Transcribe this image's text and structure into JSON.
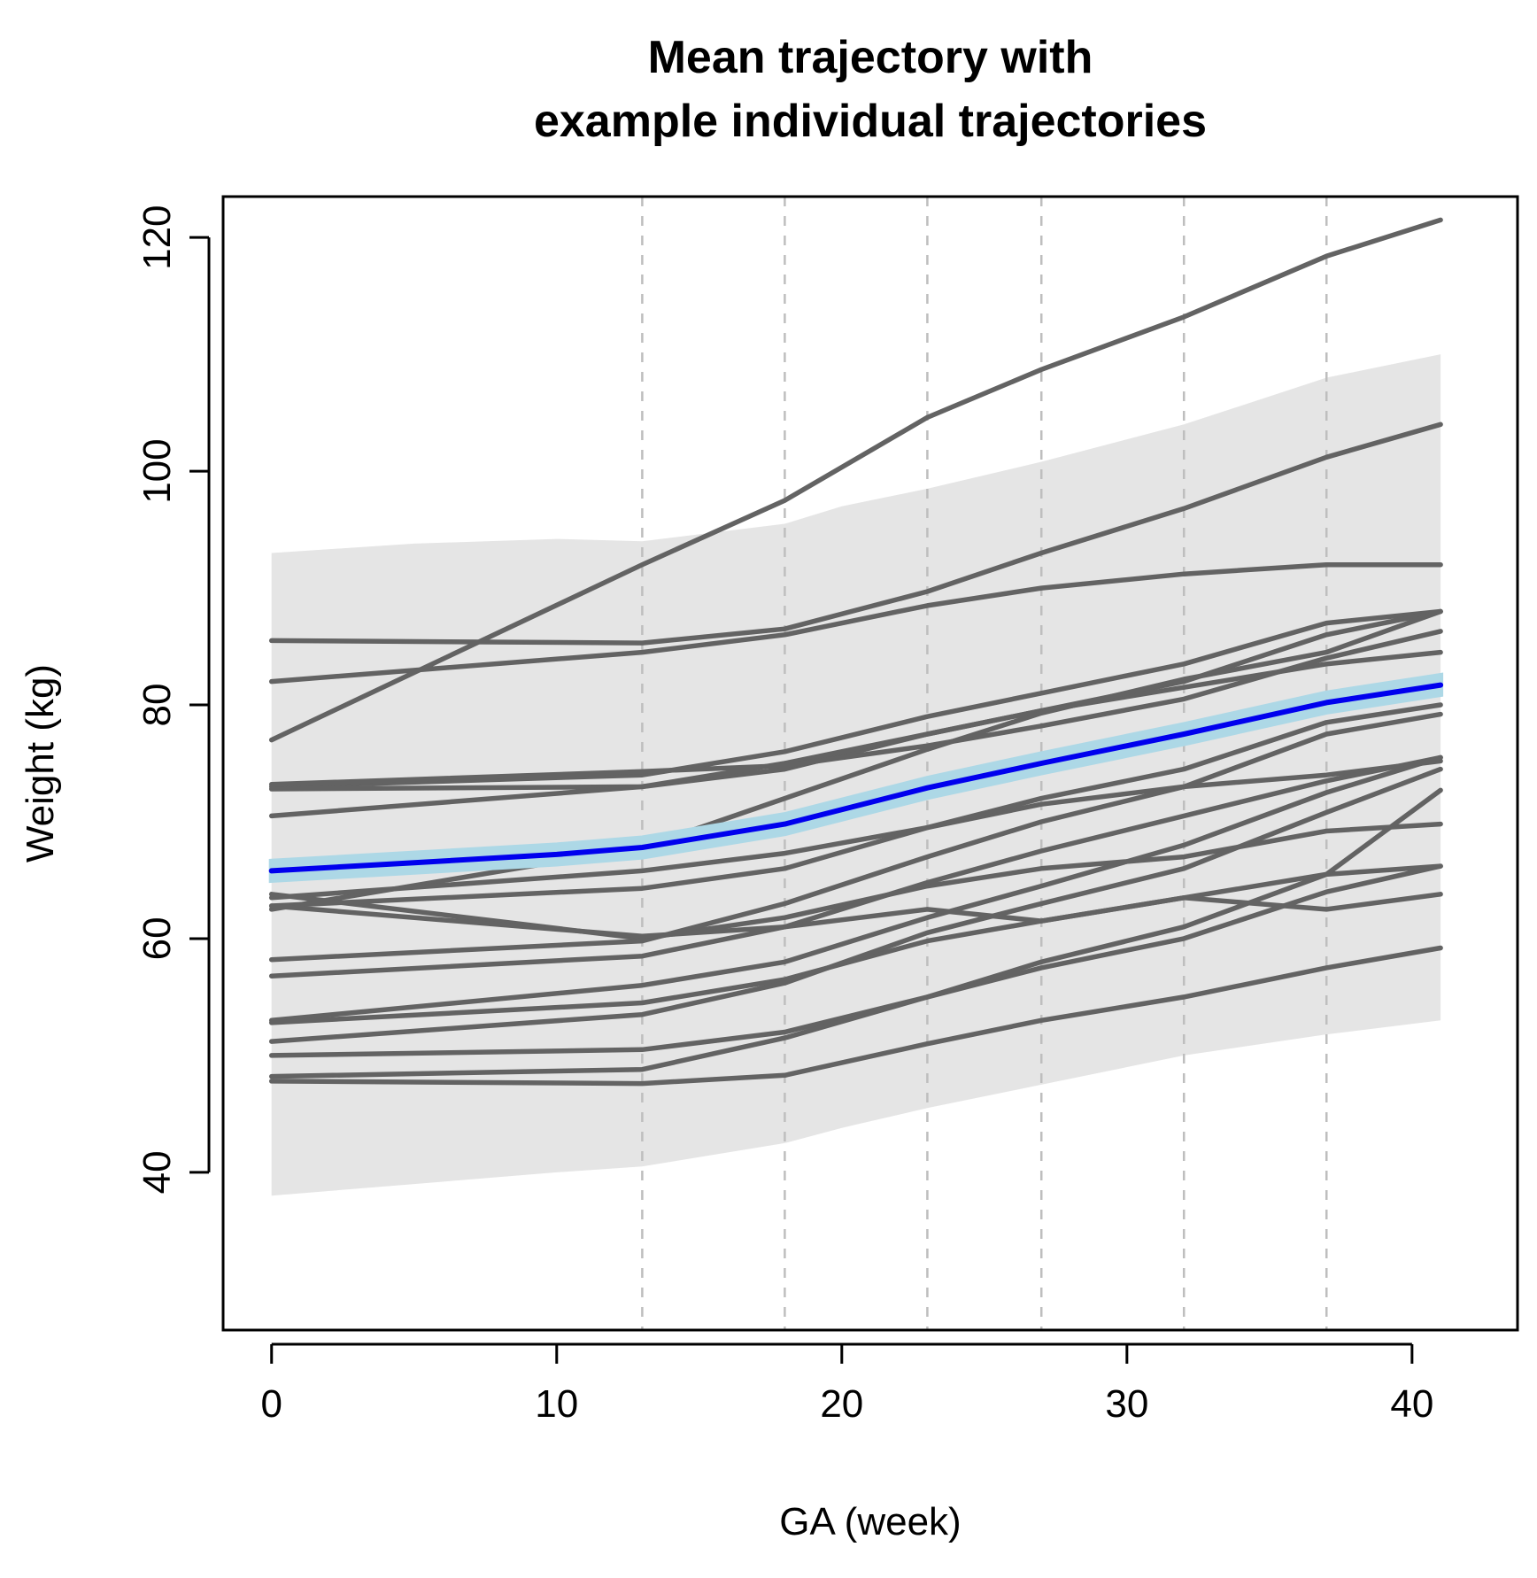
{
  "chart_data": {
    "type": "line",
    "title": "Mean trajectory with\nexample individual trajectories",
    "title_lines": [
      "Mean trajectory with",
      "example individual trajectories"
    ],
    "xlabel": "GA (week)",
    "ylabel": "Weight (kg)",
    "xlim": [
      -1.7,
      43.7
    ],
    "ylim": [
      26.5,
      123.5
    ],
    "xticks": [
      0,
      10,
      20,
      30,
      40
    ],
    "yticks": [
      40,
      60,
      80,
      100,
      120
    ],
    "grid": false,
    "vlines": [
      13,
      18,
      23,
      27,
      32,
      37
    ],
    "colors": {
      "individual": "#636363",
      "mean": "#0000ee",
      "ci": "#add8e6",
      "band": "#e5e5e5",
      "vline": "#bebebe"
    },
    "band": {
      "x": [
        0,
        5,
        10,
        13,
        18,
        20,
        23,
        27,
        32,
        37,
        41
      ],
      "lower": [
        38,
        39,
        40,
        40.5,
        42.5,
        43.8,
        45.5,
        47.5,
        50,
        51.8,
        53
      ],
      "upper": [
        93,
        93.8,
        94.2,
        94,
        95.5,
        97,
        98.5,
        100.8,
        104,
        108,
        110
      ]
    },
    "mean": {
      "x": [
        0,
        5,
        10,
        13,
        18,
        23,
        27,
        32,
        37,
        41
      ],
      "y": [
        65.8,
        66.5,
        67.2,
        67.8,
        69.8,
        72.9,
        75,
        77.5,
        80.2,
        81.7
      ],
      "ci_halfwidth": 0.8
    },
    "individual_x": [
      0,
      13,
      18,
      23,
      27,
      32,
      37,
      41
    ],
    "series": [
      {
        "values": [
          77,
          92,
          97.5,
          104.6,
          108.7,
          113.2,
          118.4,
          121.5
        ]
      },
      {
        "values": [
          82,
          84.5,
          86,
          88.5,
          90,
          91.2,
          92,
          92
        ]
      },
      {
        "values": [
          85.5,
          85.3,
          86.5,
          89.7,
          93,
          96.8,
          101.2,
          104
        ]
      },
      {
        "values": [
          73,
          74,
          76,
          79,
          81,
          83.5,
          87,
          88
        ]
      },
      {
        "values": [
          72.8,
          73,
          74.5,
          77.5,
          79.5,
          82,
          86,
          88
        ]
      },
      {
        "values": [
          70.5,
          73,
          75,
          77.5,
          79.5,
          81.5,
          83.5,
          84.5
        ]
      },
      {
        "values": [
          73.2,
          74.3,
          74.8,
          76.5,
          78.2,
          80.5,
          84,
          86.3
        ]
      },
      {
        "values": [
          62.5,
          67.8,
          72,
          76.2,
          79.3,
          82.2,
          84.5,
          88
        ]
      },
      {
        "values": [
          63.5,
          65.8,
          67.3,
          69.5,
          71.5,
          73,
          74,
          75.2
        ]
      },
      {
        "values": [
          63.8,
          60,
          61.8,
          64.5,
          66,
          67,
          69.2,
          69.8
        ]
      },
      {
        "values": [
          62.8,
          64.3,
          66,
          69.5,
          72,
          74.5,
          78.5,
          80
        ]
      },
      {
        "values": [
          58.2,
          59.8,
          63,
          67,
          70,
          73,
          77.5,
          79.2
        ]
      },
      {
        "values": [
          56.8,
          58.5,
          61,
          64.8,
          67.5,
          70.5,
          73.5,
          75.5
        ]
      },
      {
        "values": [
          53,
          56,
          58,
          61.8,
          64.5,
          68,
          72.5,
          75.5
        ]
      },
      {
        "values": [
          52.8,
          54.5,
          56.5,
          59.8,
          61.5,
          63.5,
          65.5,
          66.2
        ]
      },
      {
        "values": [
          51.2,
          53.5,
          56.2,
          60.5,
          63,
          66,
          70.8,
          74.5
        ]
      },
      {
        "values": [
          50,
          50.5,
          52,
          55,
          58,
          61,
          65.5,
          72.7
        ]
      },
      {
        "values": [
          48.2,
          48.8,
          51.5,
          55,
          57.5,
          60,
          64,
          66.2
        ]
      },
      {
        "values": [
          47.8,
          47.6,
          48.3,
          51,
          53,
          55,
          57.5,
          59.2
        ]
      },
      {
        "values": [
          62.8,
          60.2,
          61,
          62.5,
          61.5,
          63.5,
          62.5,
          63.8
        ]
      }
    ]
  }
}
